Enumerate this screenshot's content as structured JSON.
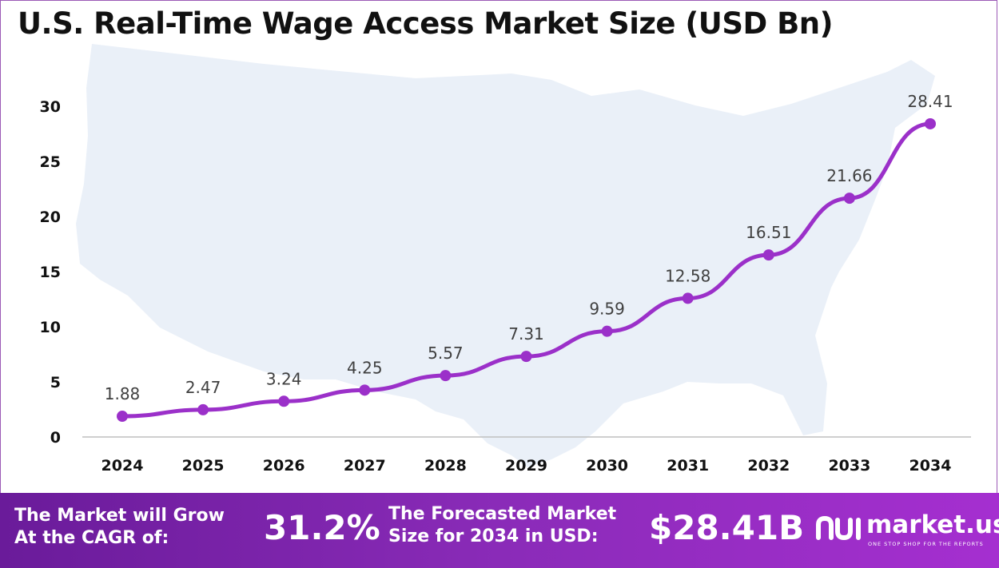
{
  "header": {
    "title": "U.S. Real-Time Wage Access Market Size (USD Bn)"
  },
  "chart_data": {
    "type": "line",
    "title": "U.S. Real-Time Wage Access Market Size (USD Bn)",
    "xlabel": "",
    "ylabel": "",
    "categories": [
      "2024",
      "2025",
      "2026",
      "2027",
      "2028",
      "2029",
      "2030",
      "2031",
      "2032",
      "2033",
      "2034"
    ],
    "series": [
      {
        "values": [
          1.88,
          2.47,
          3.24,
          4.25,
          5.57,
          7.31,
          9.59,
          12.58,
          16.51,
          21.66,
          28.41
        ]
      }
    ],
    "data_labels": [
      "1.88",
      "2.47",
      "3.24",
      "4.25",
      "5.57",
      "7.31",
      "9.59",
      "12.58",
      "16.51",
      "21.66",
      "28.41"
    ],
    "yticks": [
      0,
      5,
      10,
      15,
      20,
      25,
      30
    ],
    "ylim": [
      0,
      30
    ],
    "grid": false,
    "legend": "none",
    "colors": {
      "line": "#9b30c9",
      "marker": "#9b30c9",
      "map": "#eaf0f8",
      "axis": "#bfbfbf"
    }
  },
  "footer": {
    "cagr_label_line1": "The Market will Grow",
    "cagr_label_line2": "At the CAGR of:",
    "cagr_value": "31.2%",
    "forecast_label_line1": "The Forecasted Market",
    "forecast_label_line2": "Size for 2034 in USD:",
    "forecast_value": "$28.41B",
    "brand_name": "market.us",
    "brand_tagline": "ONE STOP SHOP FOR THE REPORTS"
  }
}
